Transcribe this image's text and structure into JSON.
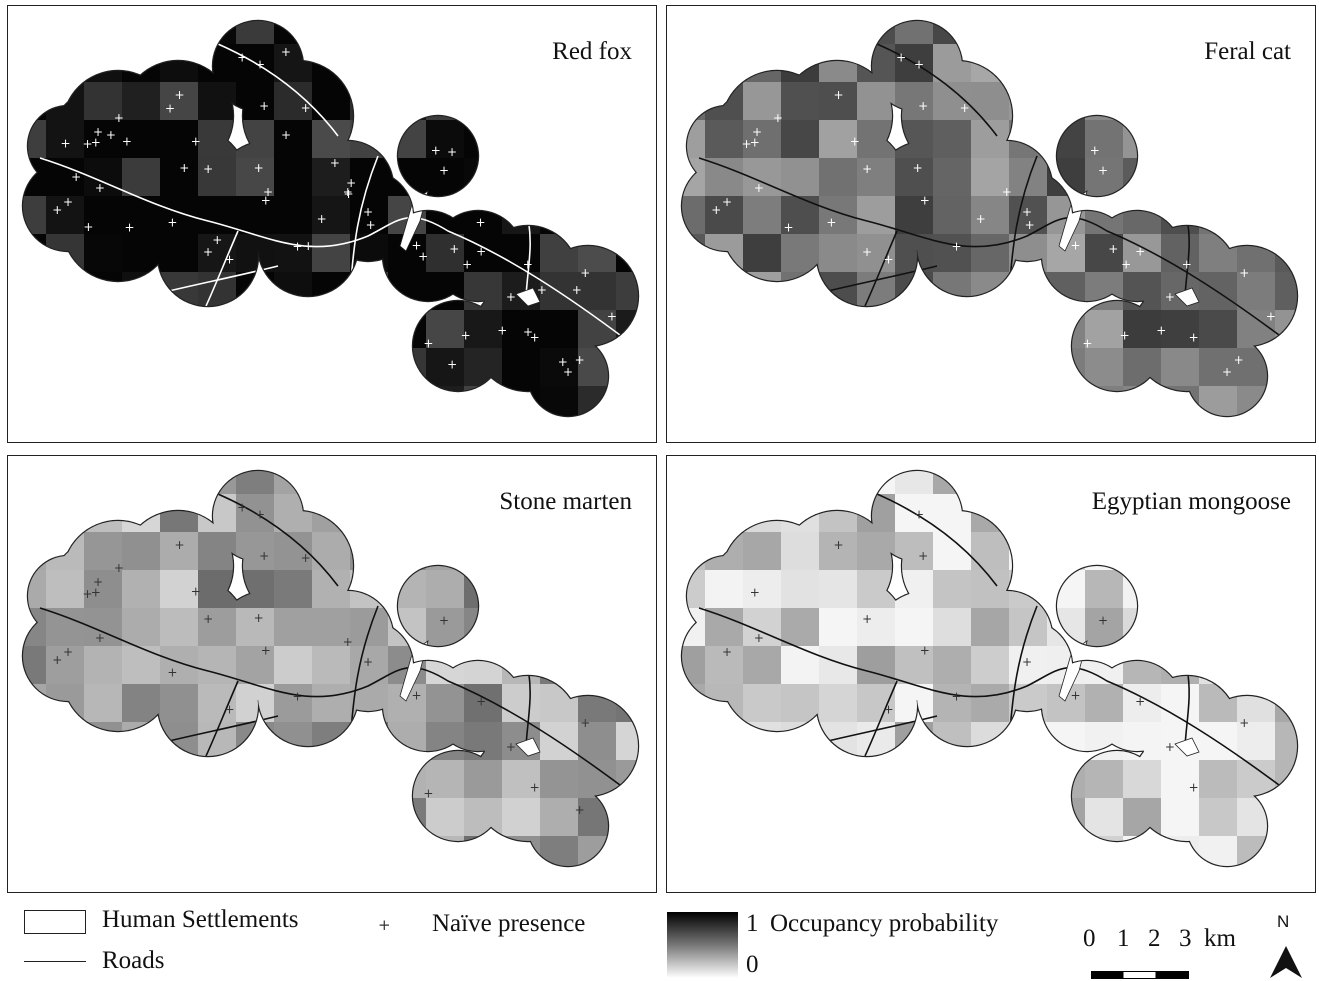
{
  "panels": [
    {
      "title": "Red fox",
      "level": 0.93,
      "icon": "occupancy-map"
    },
    {
      "title": "Feral cat",
      "level": 0.55,
      "icon": "occupancy-map"
    },
    {
      "title": "Stone marten",
      "level": 0.35,
      "icon": "occupancy-map"
    },
    {
      "title": "Egyptian mongoose",
      "level": 0.15,
      "icon": "occupancy-map"
    }
  ],
  "legend": {
    "settlements": "Human Settlements",
    "roads": "Roads",
    "presence": "Naïve presence",
    "occupancy_high": "1",
    "occupancy_title": "Occupancy probability",
    "occupancy_low": "0",
    "scale_labels": [
      "0",
      "1",
      "2",
      "3"
    ],
    "scale_unit": "km",
    "north": "N"
  },
  "colors": {
    "presence_on_dark": "#ffffff",
    "presence_on_light": "#333333",
    "road_on_dark": "#ffffff",
    "road_on_light": "#111111"
  }
}
